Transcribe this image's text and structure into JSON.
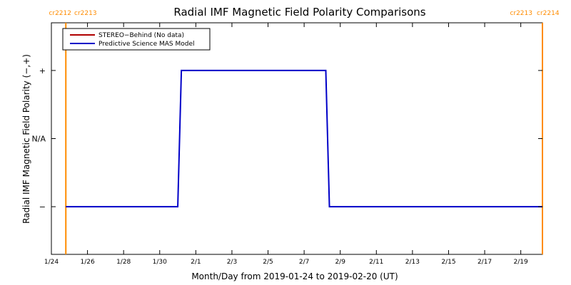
{
  "chart_data": {
    "type": "line",
    "title": "Radial IMF Magnetic Field Polarity Comparisons",
    "xlabel": "Month/Day from 2019-01-24 to 2019-02-20 (UT)",
    "ylabel": "Radial IMF Magnetic Field Polarity (−,+)",
    "x_range_days": [
      0,
      27.2
    ],
    "x_tick_labels": [
      "1/24",
      "1/26",
      "1/28",
      "1/30",
      "2/1",
      "2/3",
      "2/5",
      "2/7",
      "2/9",
      "2/11",
      "2/13",
      "2/15",
      "2/17",
      "2/19"
    ],
    "x_tick_days": [
      0,
      2,
      4,
      6,
      8,
      10,
      12,
      14,
      16,
      18,
      20,
      22,
      24,
      26
    ],
    "y_range": [
      -1.7,
      1.7
    ],
    "y_ticks": [
      {
        "label": "+",
        "value": 1
      },
      {
        "label": "N/A",
        "value": 0
      },
      {
        "label": "−",
        "value": -1
      }
    ],
    "legend": {
      "placement": "top-left",
      "entries": [
        {
          "name": "STEREO−Behind (No data)",
          "color": "#b00000"
        },
        {
          "name": "Predictive Science MAS Model",
          "color": "#0000c8"
        }
      ]
    },
    "series": [
      {
        "name": "Predictive Science MAS Model",
        "color": "#0000c8",
        "x_days": [
          0.8,
          7.0,
          7.2,
          15.2,
          15.4,
          27.2
        ],
        "y": [
          -1,
          -1,
          1,
          1,
          -1,
          -1
        ]
      }
    ],
    "carrington_markers": [
      {
        "day": 0.8,
        "color": "#ff8c00",
        "left_label": "cr2212",
        "right_label": "cr2213"
      },
      {
        "day": 27.2,
        "color": "#ff8c00",
        "left_label": "cr2213",
        "right_label": "cr2214"
      }
    ],
    "grid": false
  }
}
